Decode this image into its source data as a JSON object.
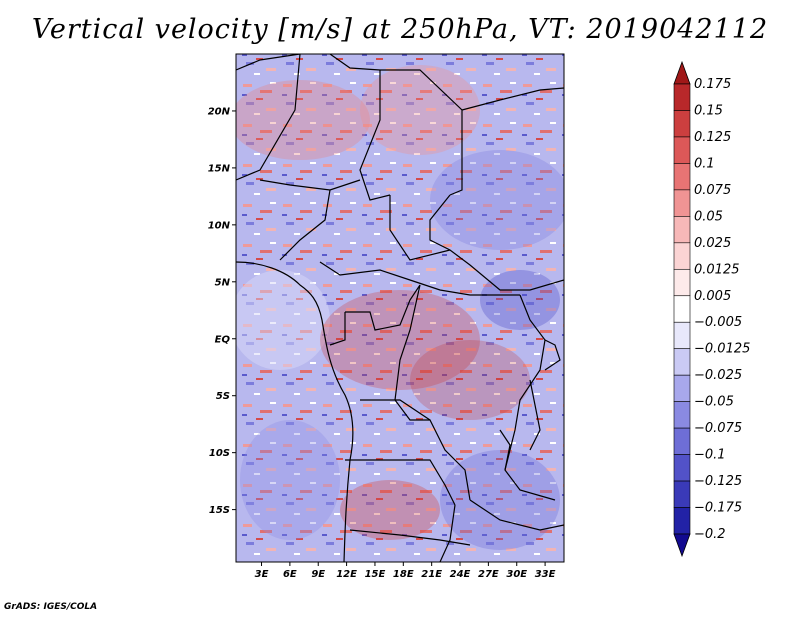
{
  "title": "Vertical velocity [m/s] at 250hPa, VT: 2019042112",
  "credit": "GrADS: IGES/COLA",
  "map": {
    "lat_ticks": [
      "20N",
      "15N",
      "10N",
      "5N",
      "EQ",
      "5S",
      "10S",
      "15S"
    ],
    "lon_ticks": [
      "3E",
      "6E",
      "9E",
      "12E",
      "15E",
      "18E",
      "21E",
      "24E",
      "27E",
      "30E",
      "33E"
    ],
    "lat_values": [
      20,
      15,
      10,
      5,
      0,
      -5,
      -10,
      -15
    ],
    "lon_values": [
      3,
      6,
      9,
      12,
      15,
      18,
      21,
      24,
      27,
      30,
      33
    ],
    "extent": {
      "lon_min": 0.3,
      "lon_max": 35,
      "lat_min": -19.6,
      "lat_max": 25
    }
  },
  "colorbar": {
    "labels": [
      "0.175",
      "0.15",
      "0.125",
      "0.1",
      "0.075",
      "0.05",
      "0.025",
      "0.0125",
      "0.005",
      "−0.005",
      "−0.0125",
      "−0.025",
      "−0.05",
      "−0.075",
      "−0.1",
      "−0.125",
      "−0.175",
      "−0.2"
    ],
    "colors": [
      "#a01818",
      "#b8282a",
      "#cc3f3f",
      "#dc5858",
      "#e87474",
      "#f09494",
      "#f7b8b8",
      "#fbd4d4",
      "#fdeaea",
      "#ffffff",
      "#e8e8fb",
      "#cacaf4",
      "#a8a8ec",
      "#8a8ae2",
      "#6e6ed6",
      "#5252c8",
      "#3a3ab8",
      "#2222a6",
      "#120a90"
    ]
  }
}
